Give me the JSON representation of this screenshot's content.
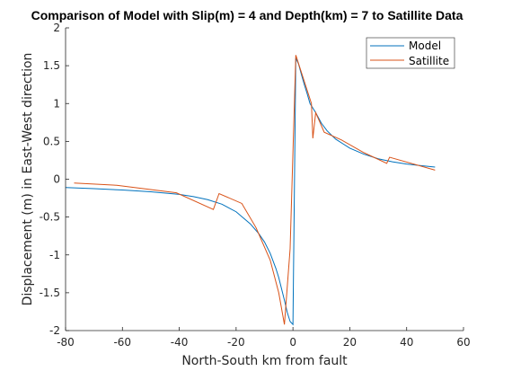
{
  "chart_data": {
    "type": "line",
    "title": "Comparison of Model with Slip(m) = 4 and Depth(km) = 7 to Satillite Data",
    "xlabel": "North-South km from fault",
    "ylabel": "Displacement (m) in East-West direction",
    "xlim": [
      -80,
      60
    ],
    "ylim": [
      -2,
      2
    ],
    "xticks": [
      -80,
      -60,
      -40,
      -20,
      0,
      20,
      40,
      60
    ],
    "yticks": [
      -2,
      -1.5,
      -1,
      -0.5,
      0,
      0.5,
      1,
      1.5,
      2
    ],
    "grid": false,
    "legend_position": "top-right",
    "colors": {
      "model": "#0072BD",
      "satellite": "#D95319"
    },
    "series": [
      {
        "name": "Model",
        "x": [
          -80,
          -70,
          -60,
          -50,
          -40,
          -35,
          -30,
          -25,
          -20,
          -15,
          -12,
          -10,
          -8,
          -6,
          -5,
          -4,
          -3,
          -2,
          -1,
          0,
          1,
          2,
          3,
          4,
          5,
          6,
          8,
          10,
          12,
          15,
          20,
          25,
          30,
          35,
          40,
          45,
          50
        ],
        "y": [
          -0.11,
          -0.125,
          -0.143,
          -0.166,
          -0.2,
          -0.23,
          -0.27,
          -0.33,
          -0.43,
          -0.59,
          -0.72,
          -0.83,
          -0.98,
          -1.18,
          -1.3,
          -1.45,
          -1.6,
          -1.76,
          -1.88,
          -1.92,
          1.6,
          1.52,
          1.38,
          1.25,
          1.13,
          1.0,
          0.88,
          0.74,
          0.64,
          0.53,
          0.41,
          0.33,
          0.27,
          0.23,
          0.2,
          0.18,
          0.16
        ]
      },
      {
        "name": "Satillite",
        "x": [
          -77,
          -62,
          -41,
          -28,
          -26,
          -18,
          -13,
          -8,
          -5,
          -3,
          -1,
          1,
          6.5,
          7,
          8,
          11,
          17,
          25,
          33,
          34,
          50
        ],
        "y": [
          -0.05,
          -0.08,
          -0.18,
          -0.4,
          -0.19,
          -0.32,
          -0.64,
          -1.07,
          -1.5,
          -1.92,
          -0.92,
          1.64,
          1.0,
          0.54,
          0.88,
          0.62,
          0.52,
          0.35,
          0.21,
          0.29,
          0.12
        ]
      }
    ]
  }
}
